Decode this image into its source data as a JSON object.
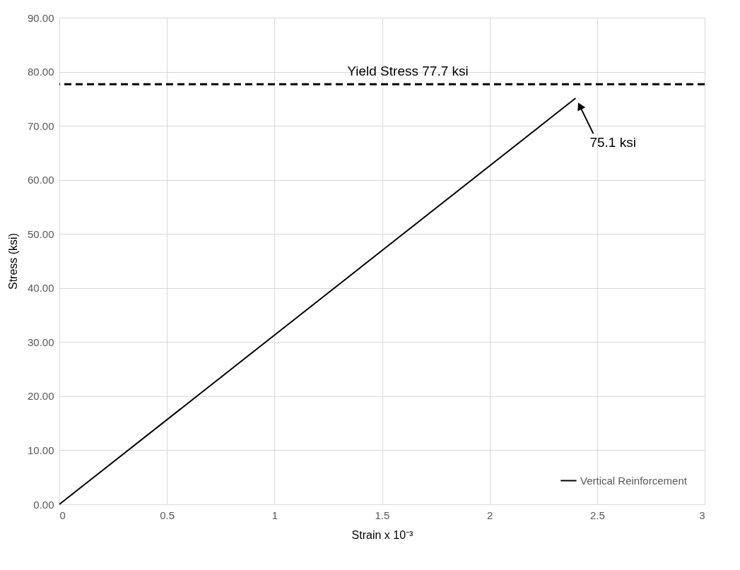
{
  "chart_data": {
    "type": "line",
    "xlabel": "Strain x 10⁻³",
    "ylabel": "Stress (ksi)",
    "x": [
      0,
      2.4
    ],
    "series": [
      {
        "name": "Vertical Reinforcement",
        "color": "#000000",
        "values": [
          0,
          75.1
        ]
      }
    ],
    "xlim": [
      0,
      3
    ],
    "xticks": [
      0,
      0.5,
      1,
      1.5,
      2,
      2.5,
      3
    ],
    "ylim": [
      0,
      90
    ],
    "yticks": [
      {
        "value": 0,
        "label": "0.00"
      },
      {
        "value": 10,
        "label": "10.00"
      },
      {
        "value": 20,
        "label": "20.00"
      },
      {
        "value": 30,
        "label": "30.00"
      },
      {
        "value": 40,
        "label": "40.00"
      },
      {
        "value": 50,
        "label": "50.00"
      },
      {
        "value": 60,
        "label": "60.00"
      },
      {
        "value": 70,
        "label": "70.00"
      },
      {
        "value": 80,
        "label": "80.00"
      },
      {
        "value": 90,
        "label": "90.00"
      }
    ],
    "ref_lines": [
      {
        "axis": "y",
        "value": 77.7,
        "label": "Yield Stress 77.7 ksi",
        "color": "#000000",
        "line_style": "dashed"
      }
    ],
    "annotations": [
      {
        "text": "75.1 ksi",
        "x": 2.4,
        "y": 75.1
      }
    ],
    "grid": true,
    "legend": "bottom right",
    "marker": "none",
    "line_style": "solid"
  }
}
